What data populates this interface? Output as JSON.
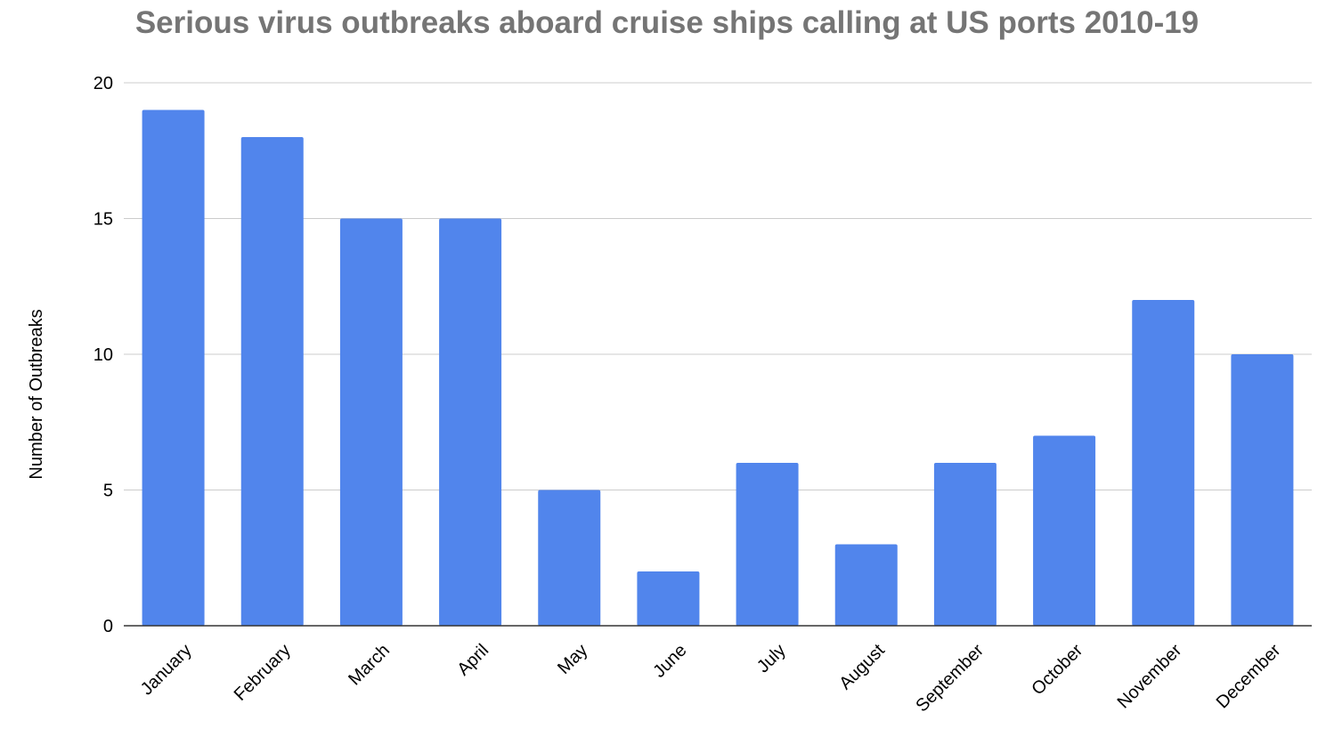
{
  "chart_data": {
    "type": "bar",
    "title": "Serious virus outbreaks aboard cruise ships calling at US ports 2010-19",
    "xlabel": "",
    "ylabel": "Number of Outbreaks",
    "categories": [
      "January",
      "February",
      "March",
      "April",
      "May",
      "June",
      "July",
      "August",
      "September",
      "October",
      "November",
      "December"
    ],
    "values": [
      19,
      18,
      15,
      15,
      5,
      2,
      6,
      3,
      6,
      7,
      12,
      10
    ],
    "ylim": [
      0,
      20
    ],
    "yticks": [
      0,
      5,
      10,
      15,
      20
    ],
    "grid": true,
    "legend": "none",
    "colors": {
      "bar": "#5185EC",
      "title": "#757575",
      "grid": "#CCCCCC",
      "axis": "#333333"
    }
  }
}
